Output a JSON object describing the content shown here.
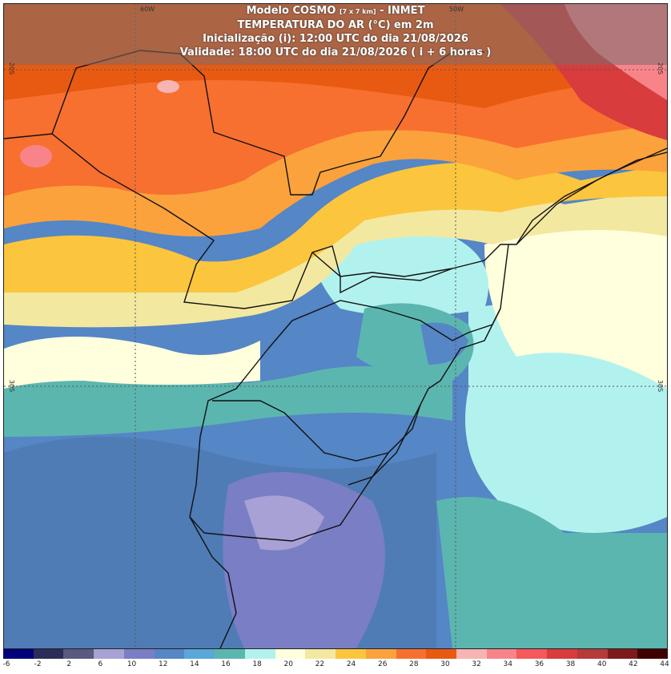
{
  "header": {
    "model_name": "Modelo COSMO",
    "resolution": "[7 x 7 km]",
    "agency": "- INMET",
    "variable": "TEMPERATURA DO AR (°C) em 2m",
    "init": "Inicialização (i): 12:00 UTC do dia 21/08/2026",
    "valid": "Validade: 18:00 UTC do dia 21/08/2026 ( i + 6 horas )"
  },
  "grid_labels": {
    "lon_60w": "60W",
    "lon_50w": "50W",
    "lat_20s": "20S",
    "lat_30s": "30S"
  },
  "colorbar": {
    "labels": [
      "-6",
      "-2",
      "2",
      "6",
      "10",
      "12",
      "14",
      "16",
      "18",
      "20",
      "22",
      "24",
      "26",
      "28",
      "30",
      "32",
      "34",
      "36",
      "38",
      "40",
      "42",
      "44"
    ],
    "colors": [
      "#00007a",
      "#2c2c58",
      "#5a5a80",
      "#a7a1d6",
      "#7a7ec4",
      "#5586c6",
      "#5aa7d9",
      "#5cb6b0",
      "#b2f2ee",
      "#ffffdd",
      "#f3e8a0",
      "#fbc53d",
      "#fba23c",
      "#f7702f",
      "#e85a12",
      "#f6b4b2",
      "#f8848a",
      "#f5595b",
      "#d83c3c",
      "#b53a3a",
      "#7d1b1b",
      "#3f0000"
    ]
  }
}
